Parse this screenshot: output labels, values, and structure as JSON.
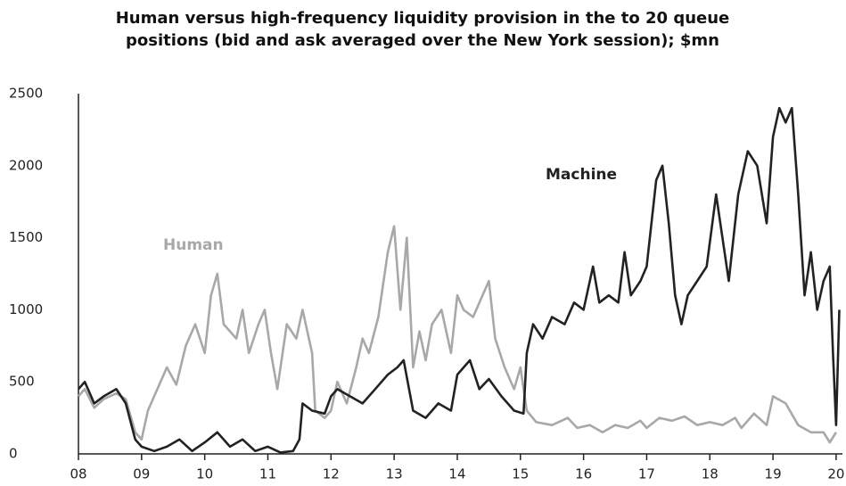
{
  "chart_data": {
    "type": "line",
    "title": "Human versus high-frequency liquidity provision in the to 20 queue positions (bid and ask averaged over the New York session); $mn",
    "xlim": [
      2008,
      2020.1
    ],
    "xticks": [
      {
        "value": 2008,
        "label": "08"
      },
      {
        "value": 2009,
        "label": "09"
      },
      {
        "value": 2010,
        "label": "10"
      },
      {
        "value": 2011,
        "label": "11"
      },
      {
        "value": 2012,
        "label": "12"
      },
      {
        "value": 2013,
        "label": "13"
      },
      {
        "value": 2014,
        "label": "14"
      },
      {
        "value": 2015,
        "label": "15"
      },
      {
        "value": 2016,
        "label": "16"
      },
      {
        "value": 2017,
        "label": "17"
      },
      {
        "value": 2018,
        "label": "18"
      },
      {
        "value": 2019,
        "label": "19"
      },
      {
        "value": 2020,
        "label": "20"
      }
    ],
    "ylim": [
      0,
      2500
    ],
    "yticks": [
      0,
      500,
      1000,
      1500,
      2000,
      2500
    ],
    "grid": false,
    "series": [
      {
        "name": "Human",
        "color": "#a8a8a8",
        "x": [
          2008.0,
          2008.1,
          2008.25,
          2008.4,
          2008.6,
          2008.75,
          2008.9,
          2009.0,
          2009.1,
          2009.25,
          2009.4,
          2009.55,
          2009.7,
          2009.85,
          2010.0,
          2010.1,
          2010.2,
          2010.3,
          2010.4,
          2010.5,
          2010.6,
          2010.7,
          2010.85,
          2010.95,
          2011.05,
          2011.15,
          2011.3,
          2011.45,
          2011.55,
          2011.7,
          2011.75,
          2011.9,
          2012.0,
          2012.1,
          2012.25,
          2012.4,
          2012.5,
          2012.6,
          2012.75,
          2012.9,
          2013.0,
          2013.1,
          2013.2,
          2013.3,
          2013.4,
          2013.5,
          2013.6,
          2013.75,
          2013.9,
          2014.0,
          2014.1,
          2014.25,
          2014.4,
          2014.5,
          2014.6,
          2014.75,
          2014.9,
          2015.0,
          2015.1,
          2015.25,
          2015.5,
          2015.75,
          2015.9,
          2016.1,
          2016.3,
          2016.5,
          2016.7,
          2016.9,
          2017.0,
          2017.2,
          2017.4,
          2017.6,
          2017.8,
          2018.0,
          2018.2,
          2018.4,
          2018.5,
          2018.7,
          2018.9,
          2019.0,
          2019.2,
          2019.4,
          2019.6,
          2019.8,
          2019.9,
          2020.0
        ],
        "values": [
          400,
          450,
          320,
          380,
          420,
          380,
          150,
          100,
          300,
          450,
          600,
          480,
          750,
          900,
          700,
          1100,
          1250,
          900,
          850,
          800,
          1000,
          700,
          900,
          1000,
          700,
          450,
          900,
          800,
          1000,
          700,
          300,
          250,
          300,
          500,
          350,
          600,
          800,
          700,
          950,
          1400,
          1580,
          1000,
          1500,
          600,
          850,
          650,
          900,
          1000,
          700,
          1100,
          1000,
          950,
          1100,
          1200,
          800,
          600,
          450,
          600,
          300,
          220,
          200,
          250,
          180,
          200,
          150,
          200,
          180,
          230,
          180,
          250,
          230,
          260,
          200,
          220,
          200,
          250,
          180,
          280,
          200,
          400,
          350,
          200,
          150,
          150,
          80,
          150
        ]
      },
      {
        "name": "Machine",
        "color": "#222222",
        "x": [
          2008.0,
          2008.1,
          2008.25,
          2008.4,
          2008.6,
          2008.75,
          2008.9,
          2009.0,
          2009.2,
          2009.4,
          2009.6,
          2009.8,
          2010.0,
          2010.2,
          2010.4,
          2010.6,
          2010.8,
          2011.0,
          2011.2,
          2011.4,
          2011.5,
          2011.55,
          2011.7,
          2011.9,
          2012.0,
          2012.1,
          2012.3,
          2012.5,
          2012.7,
          2012.9,
          2013.05,
          2013.15,
          2013.3,
          2013.5,
          2013.7,
          2013.9,
          2014.0,
          2014.2,
          2014.35,
          2014.5,
          2014.7,
          2014.9,
          2015.05,
          2015.1,
          2015.2,
          2015.35,
          2015.5,
          2015.7,
          2015.85,
          2016.0,
          2016.15,
          2016.25,
          2016.4,
          2016.55,
          2016.65,
          2016.75,
          2016.9,
          2017.0,
          2017.15,
          2017.25,
          2017.35,
          2017.45,
          2017.55,
          2017.65,
          2017.8,
          2017.95,
          2018.1,
          2018.2,
          2018.3,
          2018.45,
          2018.6,
          2018.75,
          2018.9,
          2019.0,
          2019.1,
          2019.2,
          2019.3,
          2019.4,
          2019.5,
          2019.6,
          2019.7,
          2019.8,
          2019.9,
          2019.95,
          2020.0,
          2020.05
        ],
        "values": [
          450,
          500,
          350,
          400,
          450,
          350,
          100,
          50,
          20,
          50,
          100,
          20,
          80,
          150,
          50,
          100,
          20,
          50,
          10,
          20,
          100,
          350,
          300,
          280,
          400,
          450,
          400,
          350,
          450,
          550,
          600,
          650,
          300,
          250,
          350,
          300,
          550,
          650,
          450,
          520,
          400,
          300,
          280,
          700,
          900,
          800,
          950,
          900,
          1050,
          1000,
          1300,
          1050,
          1100,
          1050,
          1400,
          1100,
          1200,
          1300,
          1900,
          2000,
          1600,
          1100,
          900,
          1100,
          1200,
          1300,
          1800,
          1500,
          1200,
          1800,
          2100,
          2000,
          1600,
          2200,
          2400,
          2300,
          2400,
          1800,
          1100,
          1400,
          1000,
          1200,
          1300,
          700,
          200,
          1000
        ]
      }
    ]
  }
}
